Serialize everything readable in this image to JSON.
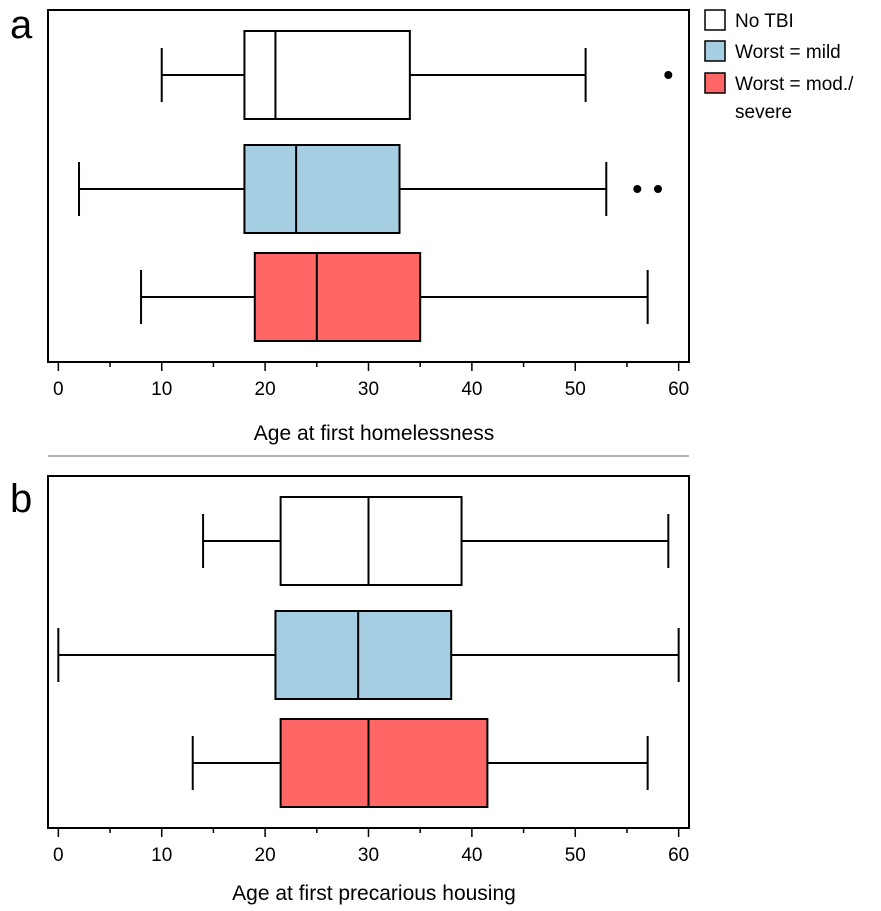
{
  "legend": {
    "placement": "top-right",
    "entries": [
      {
        "label": "No TBI",
        "color": "#ffffff"
      },
      {
        "label": "Worst = mild",
        "color": "#a6cee3"
      },
      {
        "label_lines": [
          "Worst = mod./",
          "severe"
        ],
        "color": "#ff6666"
      }
    ]
  },
  "chart_data": [
    {
      "type": "box",
      "panel_label": "a",
      "orientation": "horizontal",
      "xlabel": "Age at first homelessness",
      "xlim": [
        -1,
        61
      ],
      "xticks": [
        0,
        10,
        20,
        30,
        40,
        50,
        60
      ],
      "grid": false,
      "series": [
        {
          "color": "#ffffff",
          "whisker_low": 10,
          "q1": 18,
          "median": 21,
          "q3": 34,
          "whisker_high": 51,
          "outliers": [
            59
          ]
        },
        {
          "color": "#a6cee3",
          "whisker_low": 2,
          "q1": 18,
          "median": 23,
          "q3": 33,
          "whisker_high": 53,
          "outliers": [
            56,
            58
          ]
        },
        {
          "color": "#ff6666",
          "whisker_low": 8,
          "q1": 19,
          "median": 25,
          "q3": 35,
          "whisker_high": 57,
          "outliers": []
        }
      ]
    },
    {
      "type": "box",
      "panel_label": "b",
      "orientation": "horizontal",
      "xlabel": "Age at first precarious housing",
      "xlim": [
        -1,
        61
      ],
      "xticks": [
        0,
        10,
        20,
        30,
        40,
        50,
        60
      ],
      "grid": false,
      "series": [
        {
          "color": "#ffffff",
          "whisker_low": 14,
          "q1": 21.5,
          "median": 30,
          "q3": 39,
          "whisker_high": 59,
          "outliers": []
        },
        {
          "color": "#a6cee3",
          "whisker_low": 0,
          "q1": 21,
          "median": 29,
          "q3": 38,
          "whisker_high": 60,
          "outliers": []
        },
        {
          "color": "#ff6666",
          "whisker_low": 13,
          "q1": 21.5,
          "median": 30,
          "q3": 41.5,
          "whisker_high": 57,
          "outliers": []
        }
      ]
    }
  ]
}
